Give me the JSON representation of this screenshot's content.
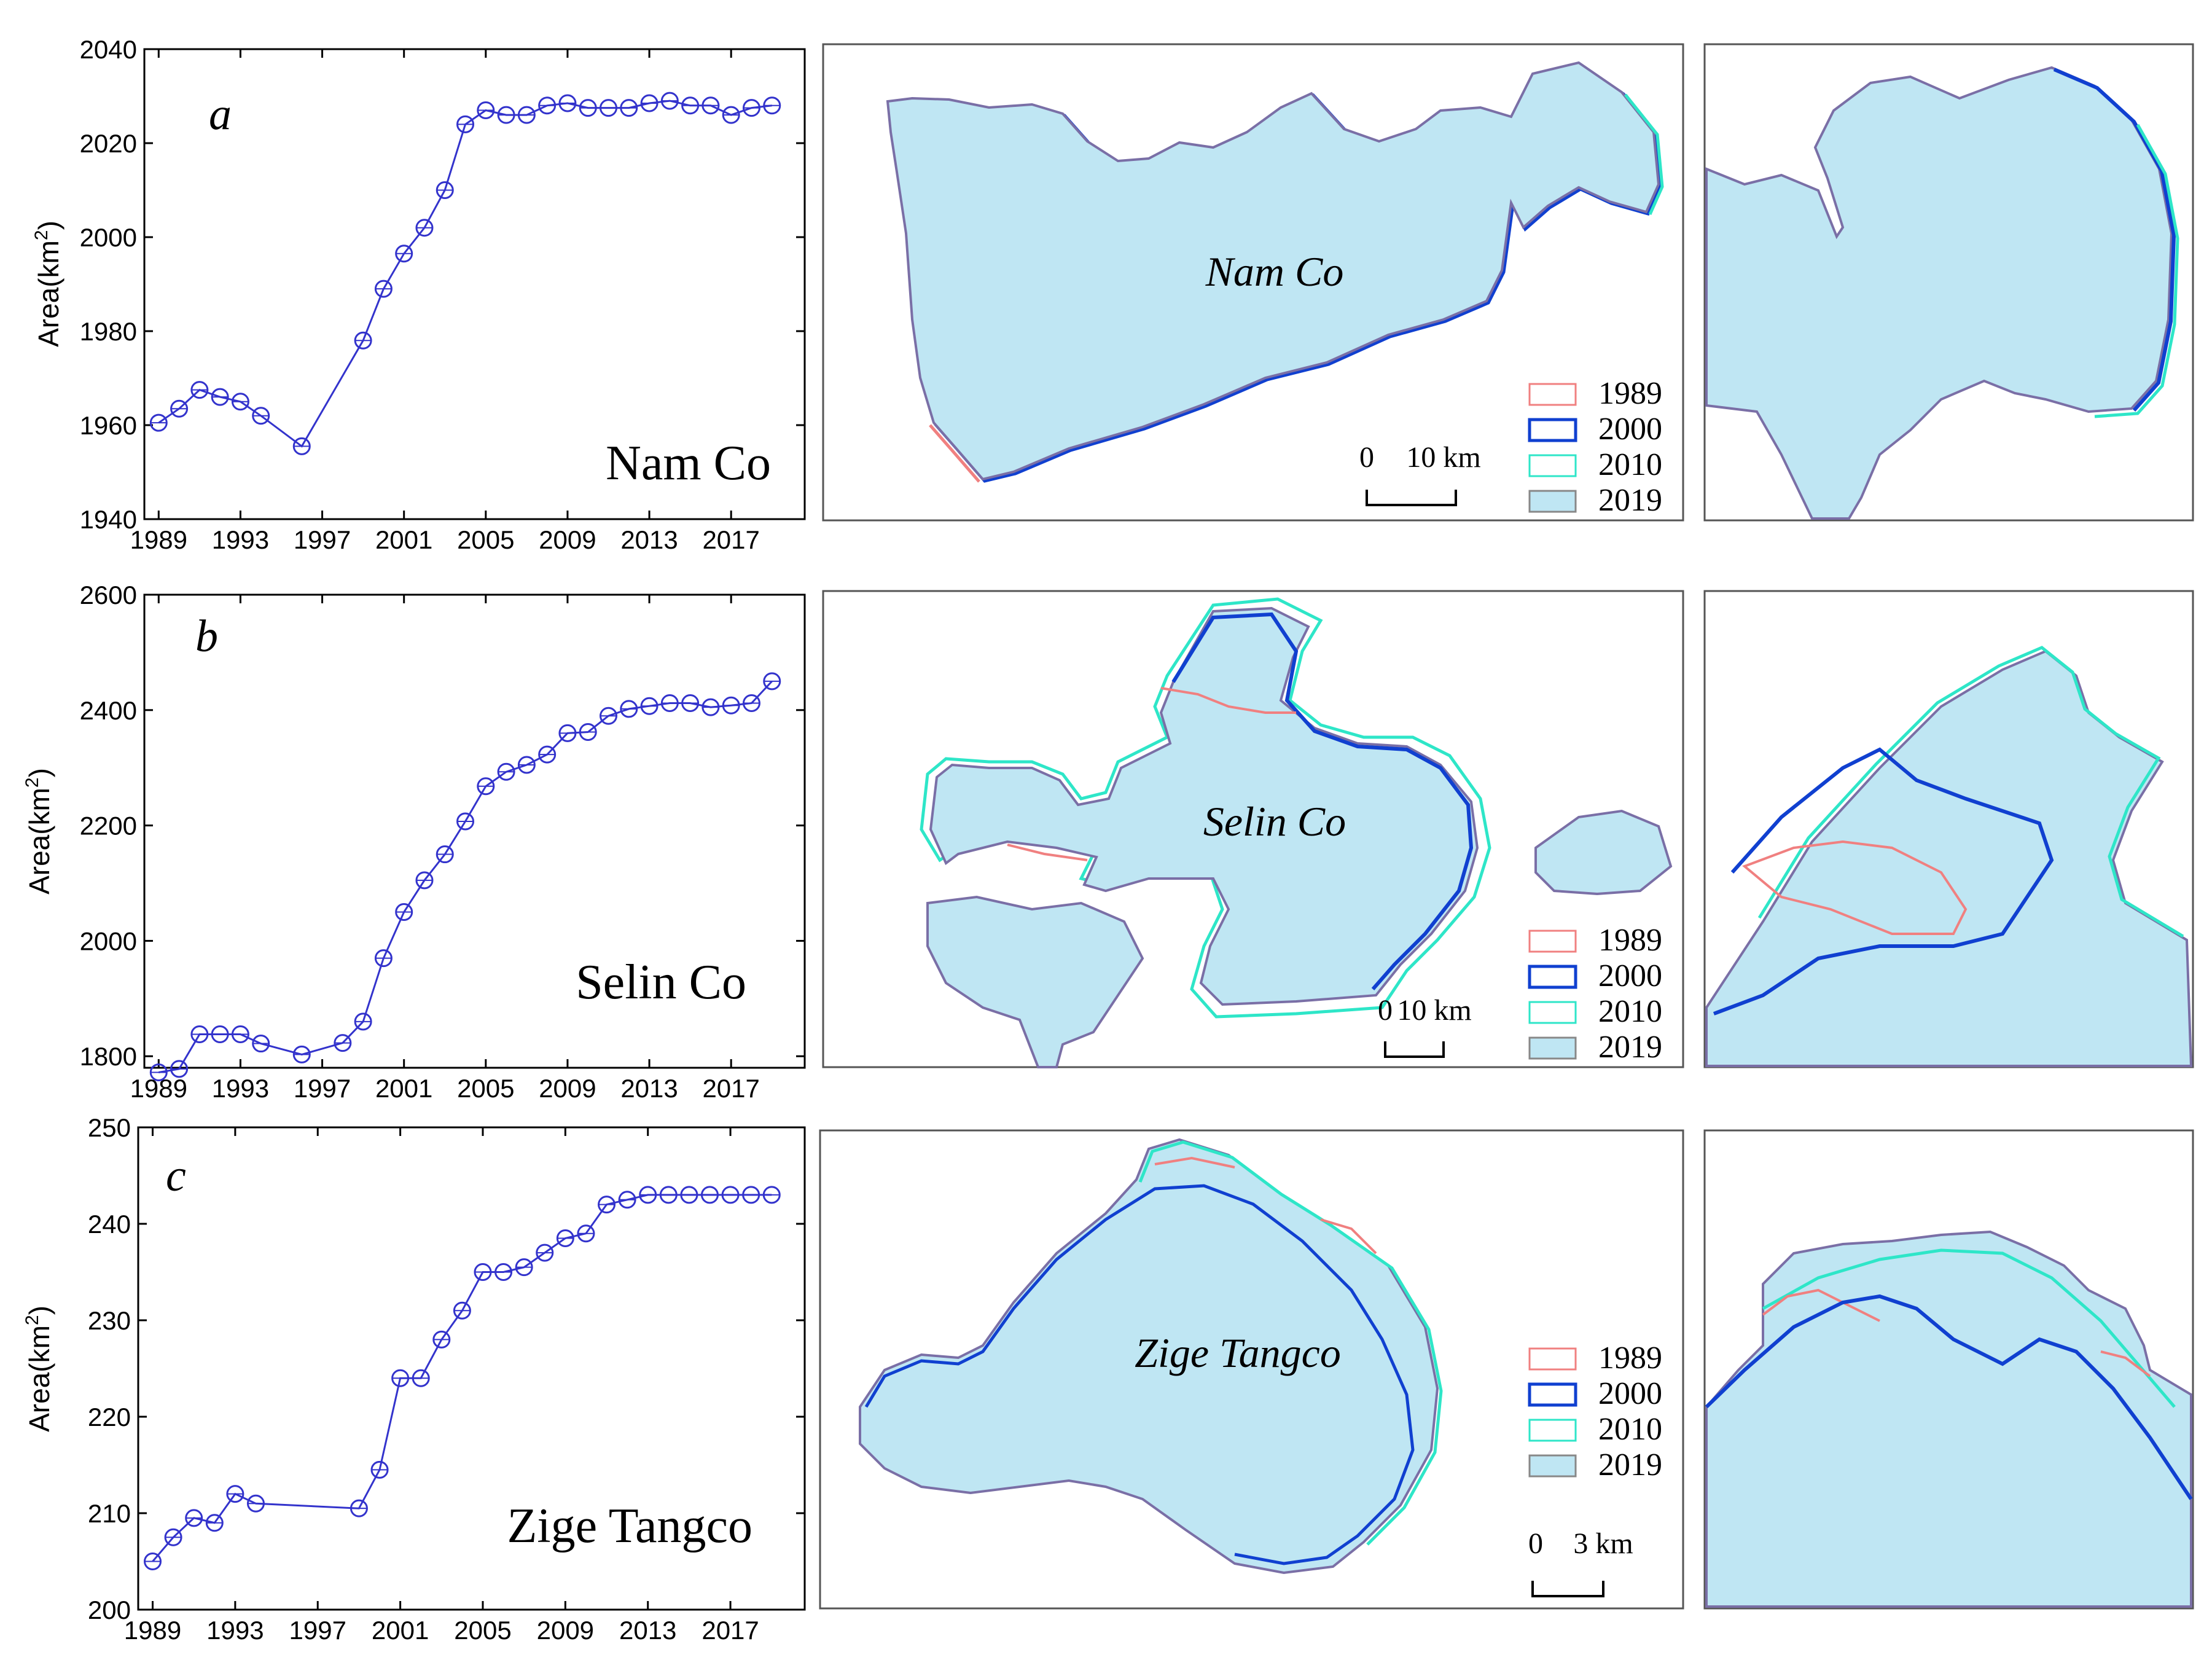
{
  "colors": {
    "series": "#3333cc",
    "lake_fill": "#bfe6f3",
    "lake_outline_2019": "#7a6fa6",
    "outline_1989": "#f08080",
    "outline_2000": "#1040d0",
    "outline_2010": "#2ee6c8",
    "axis": "#000000"
  },
  "legend_labels": [
    "1989",
    "2000",
    "2010",
    "2019"
  ],
  "chart_data": [
    {
      "type": "line",
      "panel_letter": "a",
      "lake_label": "Nam Co",
      "ylabel": "Area(km",
      "ylabel_sup": "2",
      "ylabel_close": ")",
      "xlim": [
        1988.3,
        2020.6
      ],
      "ylim": [
        1940,
        2040
      ],
      "yticks": [
        1940,
        1960,
        1980,
        2000,
        2020,
        2040
      ],
      "xticks": [
        1989,
        1993,
        1997,
        2001,
        2005,
        2009,
        2013,
        2017
      ],
      "grid": false,
      "series": [
        {
          "x": [
            1989,
            1990,
            1991,
            1992,
            1993,
            1994,
            1996,
            1999,
            2000,
            2001,
            2002,
            2003,
            2004,
            2005,
            2006,
            2007,
            2008,
            2009,
            2010,
            2011,
            2012,
            2013,
            2014,
            2015,
            2016,
            2017,
            2018,
            2019
          ],
          "values": [
            1960.5,
            1963.5,
            1967.5,
            1966,
            1965,
            1962,
            1955.5,
            1978,
            1989,
            1996.5,
            2002,
            2010,
            2024,
            2027,
            2026,
            2026,
            2028,
            2028.5,
            2027.5,
            2027.5,
            2027.5,
            2028.5,
            2029,
            2028,
            2028,
            2026,
            2027.5,
            2028
          ]
        }
      ],
      "map_label": "Nam Co",
      "scale_bar": {
        "start": "0",
        "end": "10 km"
      }
    },
    {
      "type": "line",
      "panel_letter": "b",
      "lake_label": "Selin Co",
      "ylabel": "Area(km",
      "ylabel_sup": "2",
      "ylabel_close": ")",
      "xlim": [
        1988.3,
        2020.6
      ],
      "ylim": [
        1780,
        2600
      ],
      "yticks": [
        1800,
        2000,
        2200,
        2400,
        2600
      ],
      "xticks": [
        1989,
        1993,
        1997,
        2001,
        2005,
        2009,
        2013,
        2017
      ],
      "grid": false,
      "series": [
        {
          "x": [
            1989,
            1990,
            1991,
            1992,
            1993,
            1994,
            1996,
            1998,
            1999,
            2000,
            2001,
            2002,
            2003,
            2004,
            2005,
            2006,
            2007,
            2008,
            2009,
            2010,
            2011,
            2012,
            2013,
            2014,
            2015,
            2016,
            2017,
            2018,
            2019
          ],
          "values": [
            1772,
            1778,
            1838,
            1838,
            1838,
            1822,
            1803,
            1823,
            1860,
            1970,
            2050,
            2105,
            2150,
            2207,
            2268,
            2293,
            2305,
            2323,
            2360,
            2362,
            2390,
            2402,
            2407,
            2412,
            2412,
            2405,
            2408,
            2412,
            2450
          ]
        }
      ],
      "map_label": "Selin Co",
      "scale_bar": {
        "start": "0",
        "end": "10 km"
      }
    },
    {
      "type": "line",
      "panel_letter": "c",
      "lake_label": "Zige Tangco",
      "ylabel": "Area(km",
      "ylabel_sup": "2",
      "ylabel_close": ")",
      "xlim": [
        1988.3,
        2020.6
      ],
      "ylim": [
        200,
        250
      ],
      "yticks": [
        200,
        210,
        220,
        230,
        240,
        250
      ],
      "xticks": [
        1989,
        1993,
        1997,
        2001,
        2005,
        2009,
        2013,
        2017
      ],
      "grid": false,
      "series": [
        {
          "x": [
            1989,
            1990,
            1991,
            1992,
            1993,
            1994,
            1999,
            2000,
            2001,
            2002,
            2003,
            2004,
            2005,
            2006,
            2007,
            2008,
            2009,
            2010,
            2011,
            2012,
            2013,
            2014,
            2015,
            2016,
            2017,
            2018,
            2019
          ],
          "values": [
            205,
            207.5,
            209.5,
            209,
            212,
            211,
            210.5,
            214.5,
            224,
            224,
            228,
            231,
            235,
            235,
            235.5,
            237,
            238.5,
            239,
            242,
            242.5,
            243,
            243,
            243,
            243,
            243,
            243,
            243
          ]
        }
      ],
      "map_label": "Zige Tangco",
      "scale_bar": {
        "start": "0",
        "end": "3 km"
      }
    }
  ]
}
